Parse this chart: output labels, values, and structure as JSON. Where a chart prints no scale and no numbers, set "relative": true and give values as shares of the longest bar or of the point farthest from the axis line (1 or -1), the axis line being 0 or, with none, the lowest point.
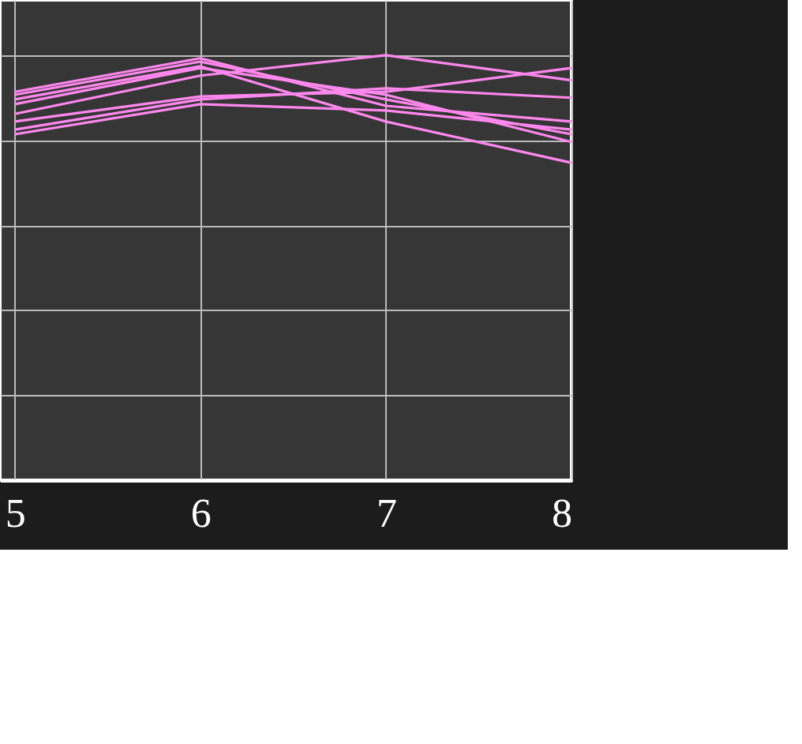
{
  "chart_data": {
    "type": "line",
    "relative": true,
    "x": [
      5,
      6,
      7,
      8
    ],
    "xlim": [
      4.92,
      8
    ],
    "xticks": [
      5,
      6,
      7,
      8
    ],
    "grid": true,
    "marker": "none",
    "line_style": "solid",
    "series": [
      {
        "color": "#ff88ee",
        "values": [
          0.914,
          0.993,
          0.881,
          0.844
        ]
      },
      {
        "color": "#ff88ee",
        "values": [
          0.907,
          0.985,
          0.896,
          0.814
        ]
      },
      {
        "color": "#ff88ee",
        "values": [
          0.896,
          0.974,
          0.844,
          0.747
        ]
      },
      {
        "color": "#ff88ee",
        "values": [
          0.885,
          0.97,
          0.907,
          0.796
        ]
      },
      {
        "color": "#ff88ee",
        "values": [
          0.862,
          0.952,
          1.0,
          0.941
        ]
      },
      {
        "color": "#ff88ee",
        "values": [
          0.844,
          0.903,
          0.914,
          0.97
        ]
      },
      {
        "color": "#ff88ee",
        "values": [
          0.825,
          0.896,
          0.922,
          0.9
        ]
      },
      {
        "color": "#ff88ee",
        "values": [
          0.814,
          0.885,
          0.87,
          0.825
        ]
      }
    ]
  }
}
